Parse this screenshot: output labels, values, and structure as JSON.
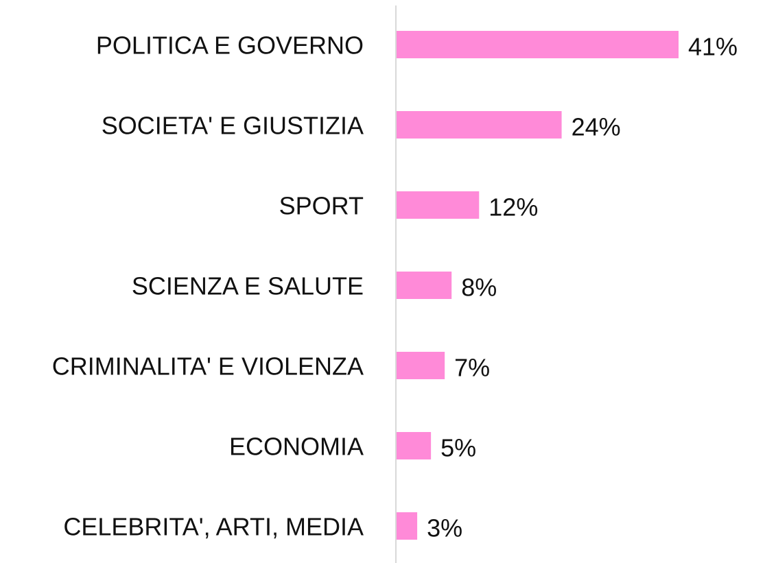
{
  "chart_data": {
    "type": "hbar",
    "categories": [
      "POLITICA E GOVERNO",
      "SOCIETA' E GIUSTIZIA",
      "SPORT",
      "SCIENZA E SALUTE",
      "CRIMINALITA' E VIOLENZA",
      "ECONOMIA",
      "CELEBRITA', ARTI, MEDIA"
    ],
    "values": [
      41,
      24,
      12,
      8,
      7,
      5,
      3
    ],
    "value_labels": [
      "41%",
      "24%",
      "12%",
      "8%",
      "7%",
      "5%",
      "3%"
    ],
    "color": "#ff8ad8"
  }
}
